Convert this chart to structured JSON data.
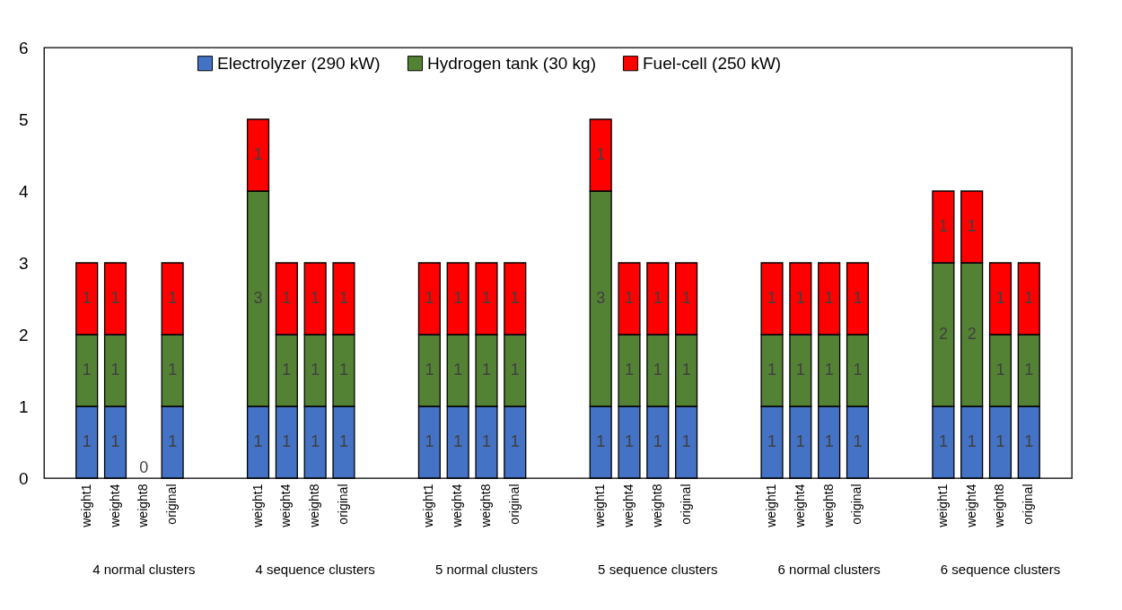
{
  "chart_data": {
    "type": "bar",
    "stacked": true,
    "categories": [
      null,
      "weight1",
      "weight4",
      "weight8",
      "original",
      null,
      null,
      "weight1",
      "weight4",
      "weight8",
      "original",
      null,
      null,
      "weight1",
      "weight4",
      "weight8",
      "original",
      null,
      null,
      "weight1",
      "weight4",
      "weight8",
      "original",
      null,
      null,
      "weight1",
      "weight4",
      "weight8",
      "original",
      null,
      null,
      "weight1",
      "weight4",
      "weight8",
      "original",
      null
    ],
    "series": [
      {
        "name": "Electrolyzer (290 kW)",
        "color": "#4472c4",
        "values": [
          null,
          1,
          1,
          0,
          1,
          null,
          null,
          1,
          1,
          1,
          1,
          null,
          null,
          1,
          1,
          1,
          1,
          null,
          null,
          1,
          1,
          1,
          1,
          null,
          null,
          1,
          1,
          1,
          1,
          null,
          null,
          1,
          1,
          1,
          1,
          null
        ],
        "value_labels": [
          null,
          "1",
          "1",
          "0",
          "1",
          null,
          null,
          "1",
          "1",
          "1",
          "1",
          null,
          null,
          "1",
          "1",
          "1",
          "1",
          null,
          null,
          "1",
          "1",
          "1",
          "1",
          null,
          null,
          "1",
          "1",
          "1",
          "1",
          null,
          null,
          "1",
          "1",
          "1",
          "1",
          null
        ]
      },
      {
        "name": "Hydrogen tank (30 kg)",
        "color": "#548235",
        "values": [
          null,
          1,
          1,
          0,
          1,
          null,
          null,
          3,
          1,
          1,
          1,
          null,
          null,
          1,
          1,
          1,
          1,
          null,
          null,
          3,
          1,
          1,
          1,
          null,
          null,
          1,
          1,
          1,
          1,
          null,
          null,
          2,
          2,
          1,
          1,
          null
        ],
        "value_labels": [
          null,
          "1",
          "1",
          null,
          "1",
          null,
          null,
          "3",
          "1",
          "1",
          "1",
          null,
          null,
          "1",
          "1",
          "1",
          "1",
          null,
          null,
          "3",
          "1",
          "1",
          "1",
          null,
          null,
          "1",
          "1",
          "1",
          "1",
          null,
          null,
          "2",
          "2",
          "1",
          "1",
          null
        ]
      },
      {
        "name": "Fuel-cell (250 kW)",
        "color": "#ff0000",
        "values": [
          null,
          1,
          1,
          0,
          1,
          null,
          null,
          1,
          1,
          1,
          1,
          null,
          null,
          1,
          1,
          1,
          1,
          null,
          null,
          1,
          1,
          1,
          1,
          null,
          null,
          1,
          1,
          1,
          1,
          null,
          null,
          1,
          1,
          1,
          1,
          null
        ],
        "value_labels": [
          null,
          "1",
          "1",
          null,
          "1",
          null,
          null,
          "1",
          "1",
          "1",
          "1",
          null,
          null,
          "1",
          "1",
          "1",
          "1",
          null,
          null,
          "1",
          "1",
          "1",
          "1",
          null,
          null,
          "1",
          "1",
          "1",
          "1",
          null,
          null,
          "1",
          "1",
          "1",
          "1",
          null
        ]
      }
    ],
    "ylim": [
      0,
      6
    ],
    "yticks": [
      0,
      1,
      2,
      3,
      4,
      5,
      6
    ],
    "legend": "top",
    "annotations": [
      "4 normal clusters",
      "4 sequence clusters",
      "5 normal clusters",
      "5 sequence clusters",
      "6 normal clusters",
      "6 sequence clusters"
    ]
  }
}
